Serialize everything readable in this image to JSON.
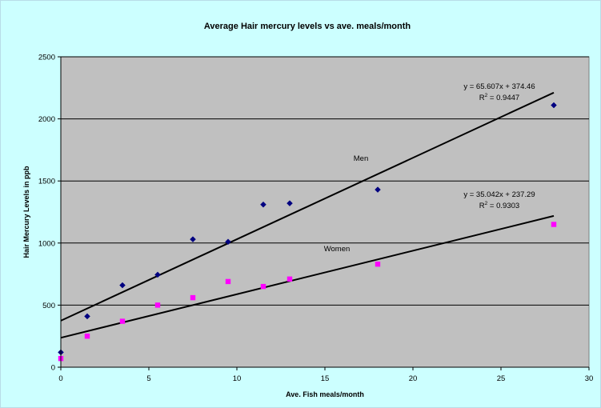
{
  "chart_data": {
    "type": "scatter",
    "title": "Average Hair mercury levels vs ave. meals/month",
    "xlabel": "Ave. Fish meals/month",
    "ylabel": "Hair Mercury Levels in ppb",
    "xlim": [
      0,
      30
    ],
    "ylim": [
      0,
      2500
    ],
    "x_ticks": [
      "0",
      "5",
      "10",
      "15",
      "20",
      "25",
      "30"
    ],
    "y_ticks": [
      "0",
      "500",
      "1000",
      "1500",
      "2000",
      "2500"
    ],
    "grid": "horizontal",
    "plot_background": "#c0c0c0",
    "series": [
      {
        "label": "Men",
        "color": "#000080",
        "marker": "diamond",
        "x": [
          0,
          1.5,
          3.5,
          5.5,
          7.5,
          9.5,
          11.5,
          13,
          18,
          28
        ],
        "y": [
          120,
          410,
          660,
          745,
          1030,
          1010,
          1310,
          1320,
          1430,
          2110
        ],
        "trendline": {
          "slope": 65.607,
          "intercept": 374.46,
          "equation": "y = 65.607x + 374.46",
          "r2_label": "R",
          "r2_exp": "2",
          "r2_value": " = 0.9447"
        }
      },
      {
        "label": "Women",
        "color": "#ff00ff",
        "marker": "square",
        "x": [
          0,
          1.5,
          3.5,
          5.5,
          7.5,
          9.5,
          11.5,
          13,
          18,
          28
        ],
        "y": [
          70,
          250,
          370,
          500,
          560,
          690,
          650,
          710,
          830,
          1150
        ],
        "trendline": {
          "slope": 35.042,
          "intercept": 237.29,
          "equation": "y = 35.042x + 237.29",
          "r2_label": "R",
          "r2_exp": "2",
          "r2_value": " = 0.9303"
        }
      }
    ]
  }
}
